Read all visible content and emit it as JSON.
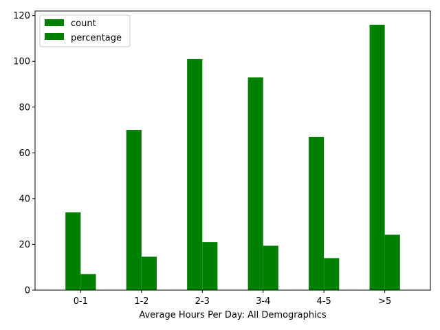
{
  "chart_data": {
    "type": "bar",
    "categories": [
      "0-1",
      "1-2",
      "2-3",
      "3-4",
      "4-5",
      ">5"
    ],
    "series": [
      {
        "name": "count",
        "values": [
          34,
          70,
          101,
          93,
          67,
          116
        ],
        "color": "#008000"
      },
      {
        "name": "percentage",
        "values": [
          7.0,
          14.6,
          21.0,
          19.4,
          14.0,
          24.2
        ],
        "color": "#008000"
      }
    ],
    "title": "",
    "xlabel": "Average Hours Per Day: All Demographics",
    "ylabel": "",
    "ylim": [
      0,
      122
    ],
    "yticks": [
      0,
      20,
      40,
      60,
      80,
      100,
      120
    ],
    "grid": false,
    "legend_position": "top-left"
  }
}
